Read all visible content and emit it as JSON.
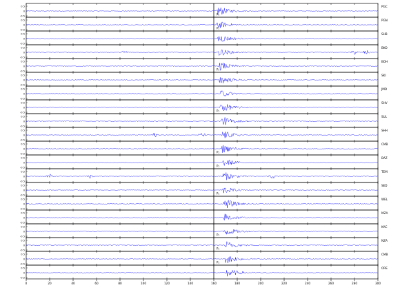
{
  "chart_data": {
    "type": "line",
    "title": "",
    "xlabel": "",
    "ylabel": "",
    "x_axis_ticks": [
      "0",
      "20",
      "40",
      "60",
      "80",
      "100",
      "120",
      "140",
      "160",
      "180",
      "200",
      "220",
      "240",
      "260",
      "280",
      "300"
    ],
    "xlim": [
      0,
      300
    ],
    "trace_color": "#0000ff",
    "grid": false,
    "pick_time": 160,
    "pick_label": "P₁",
    "amplitude_ticks": [
      "0.5",
      "0",
      "-0.5"
    ],
    "traces": [
      {
        "station": "PGC",
        "arrival": 162,
        "amp": 1.0,
        "pick": true,
        "bursts": []
      },
      {
        "station": "PGN",
        "arrival": 162,
        "amp": 0.8,
        "pick": true,
        "bursts": []
      },
      {
        "station": "SHB",
        "arrival": 163,
        "amp": 0.9,
        "pick": false,
        "bursts": []
      },
      {
        "station": "BKO",
        "arrival": 163,
        "amp": 0.8,
        "pick": false,
        "bursts": [
          84,
          280,
          290
        ]
      },
      {
        "station": "BOH",
        "arrival": 164,
        "amp": 0.8,
        "pick": true,
        "bursts": []
      },
      {
        "station": "SKI",
        "arrival": 164,
        "amp": 0.9,
        "pick": false,
        "bursts": []
      },
      {
        "station": "JMD",
        "arrival": 165,
        "amp": 0.7,
        "pick": false,
        "bursts": []
      },
      {
        "station": "SHV",
        "arrival": 165,
        "amp": 1.0,
        "pick": true,
        "bursts": []
      },
      {
        "station": "SUL",
        "arrival": 166,
        "amp": 0.9,
        "pick": false,
        "bursts": []
      },
      {
        "station": "SHH",
        "arrival": 166,
        "amp": 0.9,
        "pick": false,
        "bursts": [
          110,
          150
        ]
      },
      {
        "station": "CMB",
        "arrival": 166,
        "amp": 0.8,
        "pick": true,
        "bursts": []
      },
      {
        "station": "BAZ",
        "arrival": 167,
        "amp": 0.8,
        "pick": true,
        "bursts": []
      },
      {
        "station": "TEM",
        "arrival": 167,
        "amp": 0.9,
        "pick": false,
        "bursts": [
          20,
          55,
          210
        ]
      },
      {
        "station": "SED",
        "arrival": 167,
        "amp": 0.7,
        "pick": true,
        "bursts": []
      },
      {
        "station": "WEL",
        "arrival": 168,
        "amp": 1.0,
        "pick": false,
        "bursts": []
      },
      {
        "station": "MZA",
        "arrival": 168,
        "amp": 0.8,
        "pick": false,
        "bursts": []
      },
      {
        "station": "KAC",
        "arrival": 168,
        "amp": 0.9,
        "pick": true,
        "bursts": []
      },
      {
        "station": "NZA",
        "arrival": 169,
        "amp": 0.8,
        "pick": true,
        "bursts": []
      },
      {
        "station": "CMB",
        "arrival": 169,
        "amp": 1.0,
        "pick": true,
        "bursts": []
      },
      {
        "station": "ORE",
        "arrival": 170,
        "amp": 0.9,
        "pick": false,
        "bursts": []
      }
    ]
  }
}
